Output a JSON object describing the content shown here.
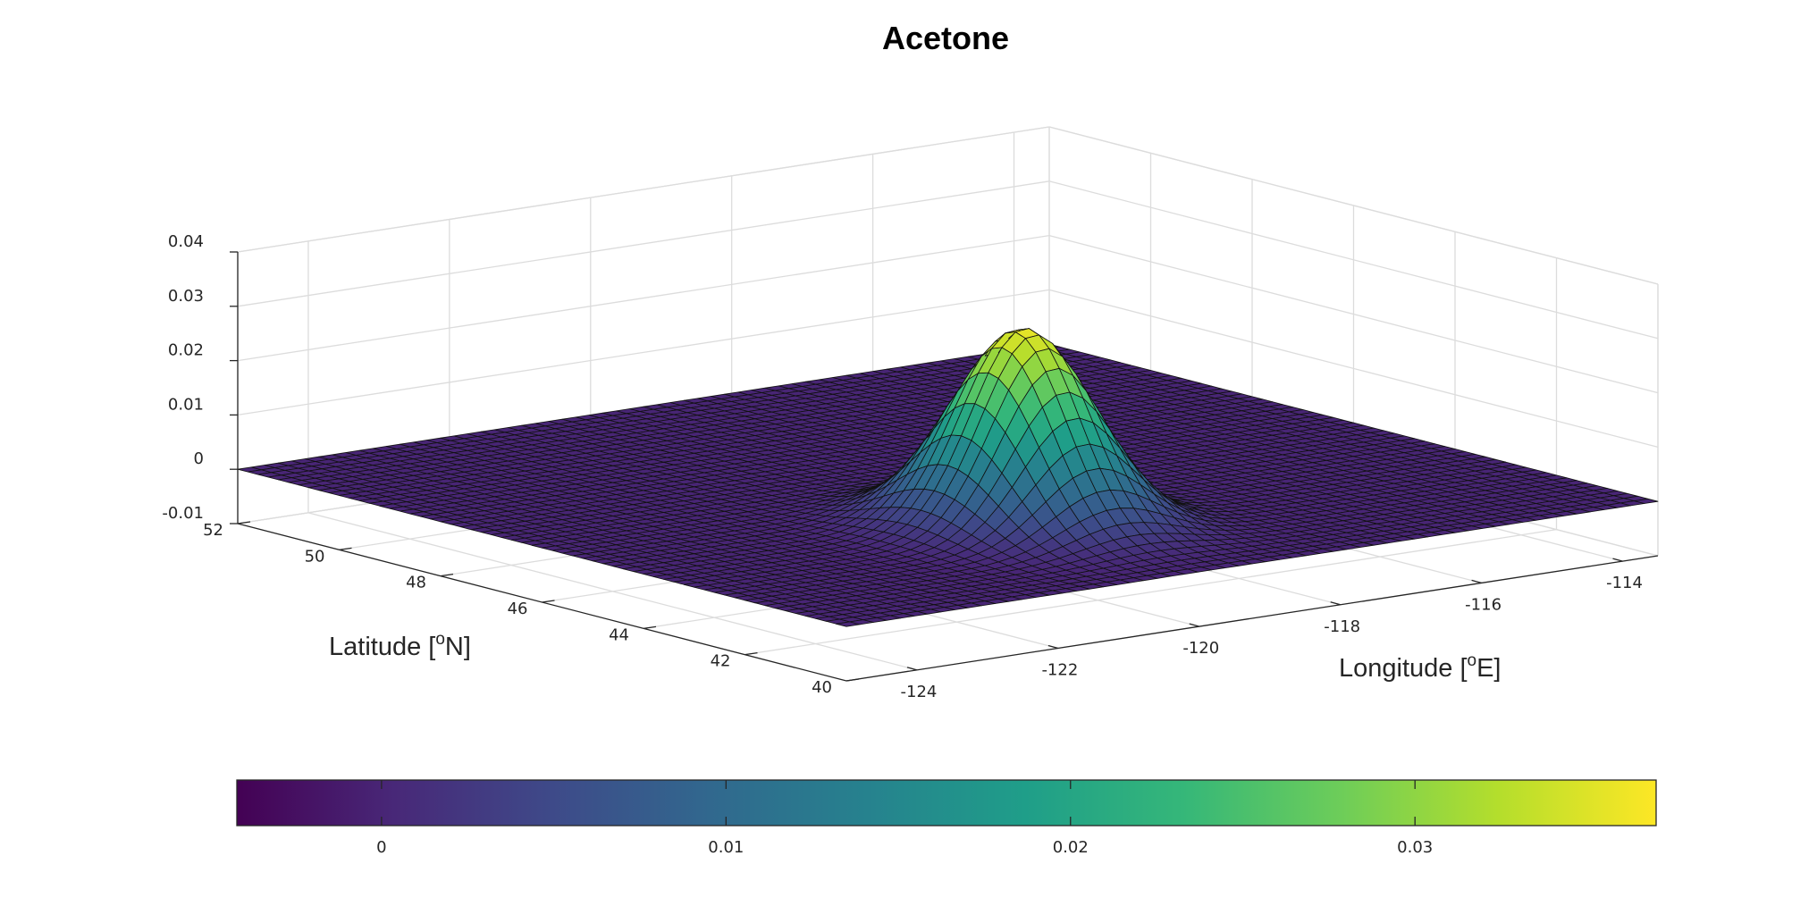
{
  "chart_data": {
    "type": "surface",
    "title": "Acetone",
    "xlabel": "Longitude [°E]",
    "ylabel": "Latitude [°N]",
    "xlabel_parts": [
      "Longitude [",
      "o",
      "E]"
    ],
    "ylabel_parts": [
      "Latitude [",
      "o",
      "N]"
    ],
    "x_ticks": [
      "-124",
      "-122",
      "-120",
      "-118",
      "-116",
      "-114"
    ],
    "y_ticks": [
      "40",
      "42",
      "44",
      "46",
      "48",
      "50",
      "52"
    ],
    "z_ticks": [
      "-0.01",
      "0",
      "0.01",
      "0.02",
      "0.03",
      "0.04"
    ],
    "xlim": [
      -125,
      -113.5
    ],
    "ylim": [
      40,
      52
    ],
    "zlim": [
      -0.01,
      0.04
    ],
    "colormap": "viridis",
    "colorbar": {
      "location": "south",
      "limits": [
        -0.0042,
        0.037
      ],
      "ticks": [
        "0",
        "0.01",
        "0.02",
        "0.03"
      ]
    },
    "surface": {
      "form": "gaussian peak",
      "peak_value": 0.036,
      "peak_longitude": -119.9,
      "peak_latitude": 43.6,
      "sigma_longitude": 0.75,
      "sigma_latitude": 1.0,
      "baseline": 0
    }
  }
}
